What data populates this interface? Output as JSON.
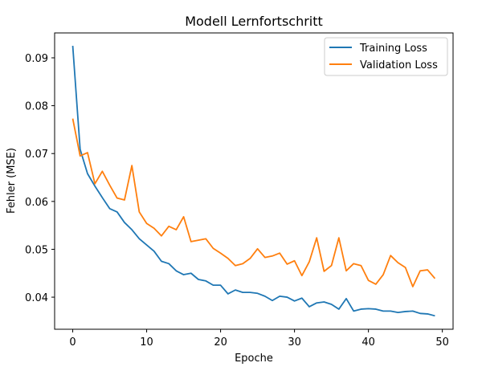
{
  "chart_data": {
    "type": "line",
    "title": "Modell Lernfortschritt",
    "xlabel": "Epoche",
    "ylabel": "Fehler (MSE)",
    "xlim": [
      -2.45,
      51.45
    ],
    "ylim": [
      0.0333,
      0.0952
    ],
    "xticks": [
      0,
      10,
      20,
      30,
      40,
      50
    ],
    "xtick_labels": [
      "0",
      "10",
      "20",
      "30",
      "40",
      "50"
    ],
    "yticks": [
      0.04,
      0.05,
      0.06,
      0.07,
      0.08,
      0.09
    ],
    "ytick_labels": [
      "0.04",
      "0.05",
      "0.06",
      "0.07",
      "0.08",
      "0.09"
    ],
    "grid": false,
    "legend_position": "top-right",
    "x": [
      0,
      1,
      2,
      3,
      4,
      5,
      6,
      7,
      8,
      9,
      10,
      11,
      12,
      13,
      14,
      15,
      16,
      17,
      18,
      19,
      20,
      21,
      22,
      23,
      24,
      25,
      26,
      27,
      28,
      29,
      30,
      31,
      32,
      33,
      34,
      35,
      36,
      37,
      38,
      39,
      40,
      41,
      42,
      43,
      44,
      45,
      46,
      47,
      48,
      49
    ],
    "series": [
      {
        "name": "Training Loss",
        "color": "#1f77b4",
        "values": [
          0.0925,
          0.0709,
          0.0658,
          0.0632,
          0.0608,
          0.0585,
          0.0578,
          0.0556,
          0.0541,
          0.0522,
          0.0509,
          0.0496,
          0.0475,
          0.047,
          0.0455,
          0.0447,
          0.045,
          0.0437,
          0.0434,
          0.0425,
          0.0425,
          0.0407,
          0.0415,
          0.041,
          0.041,
          0.0408,
          0.0402,
          0.0393,
          0.0402,
          0.04,
          0.0392,
          0.0398,
          0.038,
          0.0388,
          0.039,
          0.0385,
          0.0375,
          0.0397,
          0.0371,
          0.0375,
          0.0376,
          0.0375,
          0.0371,
          0.0371,
          0.0368,
          0.037,
          0.0371,
          0.0366,
          0.0365,
          0.0361
        ]
      },
      {
        "name": "Validation Loss",
        "color": "#ff7f0e",
        "values": [
          0.0773,
          0.0695,
          0.0702,
          0.0637,
          0.0663,
          0.0634,
          0.0607,
          0.0603,
          0.0675,
          0.0578,
          0.0554,
          0.0544,
          0.0528,
          0.0548,
          0.0541,
          0.0568,
          0.0516,
          0.0519,
          0.0522,
          0.0502,
          0.0492,
          0.0481,
          0.0466,
          0.047,
          0.0481,
          0.0501,
          0.0483,
          0.0486,
          0.0492,
          0.0469,
          0.0476,
          0.0445,
          0.0474,
          0.0524,
          0.0454,
          0.0466,
          0.0524,
          0.0455,
          0.047,
          0.0466,
          0.0435,
          0.0427,
          0.0447,
          0.0487,
          0.0472,
          0.0462,
          0.0422,
          0.0455,
          0.0457,
          0.0439
        ]
      }
    ]
  }
}
